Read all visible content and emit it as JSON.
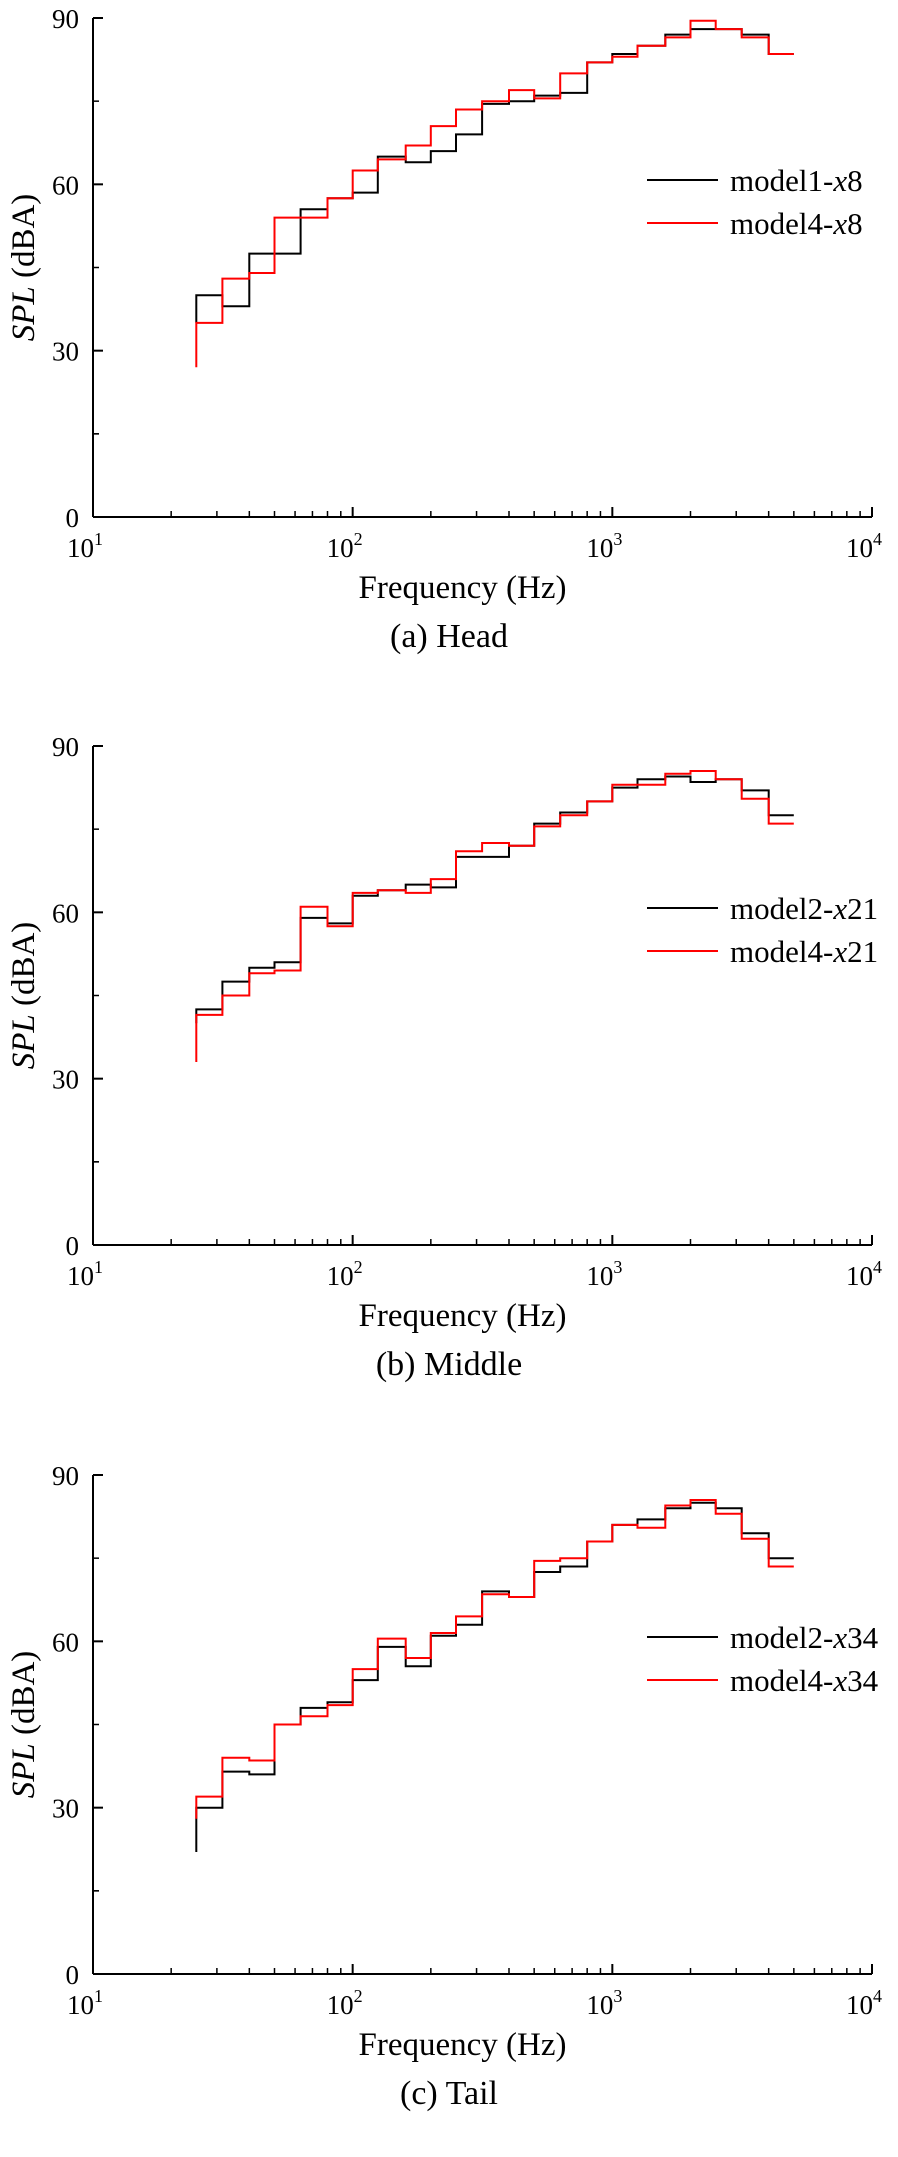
{
  "chart_data": [
    {
      "type": "line",
      "step": true,
      "xscale": "log",
      "xlim": [
        10,
        10000
      ],
      "ylim": [
        0,
        90
      ],
      "yticks": [
        0,
        30,
        60,
        90
      ],
      "xticks": [
        {
          "base": "10",
          "exp": "1"
        },
        {
          "base": "10",
          "exp": "2"
        },
        {
          "base": "10",
          "exp": "3"
        },
        {
          "base": "10",
          "exp": "4"
        }
      ],
      "xlabel": "Frequency (Hz)",
      "ylabel_italic": "SPL",
      "ylabel_rest": " (dBA)",
      "caption": "(a)  Head",
      "legend_position": "right",
      "x": [
        25,
        31.5,
        40,
        50,
        63,
        80,
        100,
        125,
        160,
        200,
        250,
        315,
        400,
        500,
        630,
        800,
        1000,
        1250,
        1600,
        2000,
        2500,
        3150,
        4000,
        5000
      ],
      "series": [
        {
          "name_prefix": "model1-",
          "name_italic": "x",
          "name_suffix": "8",
          "color": "#000000",
          "values": [
            40,
            38,
            47.5,
            47.5,
            55.5,
            57.5,
            58.5,
            65,
            64,
            66,
            69,
            74.5,
            75,
            76,
            76.5,
            82,
            83.5,
            85,
            87,
            88,
            88,
            87,
            83.5,
            83.5
          ]
        },
        {
          "name_prefix": "model4-",
          "name_italic": "x",
          "name_suffix": "8",
          "color": "#ff0000",
          "values": [
            35,
            43,
            44,
            54,
            54,
            57.5,
            62.5,
            64.5,
            67,
            70.5,
            73.5,
            75,
            77,
            75.5,
            80,
            82,
            83,
            85,
            86.5,
            89.5,
            88,
            86.5,
            83.5,
            83.5
          ]
        }
      ],
      "start_values": [
        35,
        27
      ]
    },
    {
      "type": "line",
      "step": true,
      "xscale": "log",
      "xlim": [
        10,
        10000
      ],
      "ylim": [
        0,
        90
      ],
      "yticks": [
        0,
        30,
        60,
        90
      ],
      "xticks": [
        {
          "base": "10",
          "exp": "1"
        },
        {
          "base": "10",
          "exp": "2"
        },
        {
          "base": "10",
          "exp": "3"
        },
        {
          "base": "10",
          "exp": "4"
        }
      ],
      "xlabel": "Frequency (Hz)",
      "ylabel_italic": "SPL",
      "ylabel_rest": " (dBA)",
      "caption": "(b)  Middle",
      "legend_position": "right",
      "x": [
        25,
        31.5,
        40,
        50,
        63,
        80,
        100,
        125,
        160,
        200,
        250,
        315,
        400,
        500,
        630,
        800,
        1000,
        1250,
        1600,
        2000,
        2500,
        3150,
        4000,
        5000
      ],
      "series": [
        {
          "name_prefix": "model2-",
          "name_italic": "x",
          "name_suffix": "21",
          "color": "#000000",
          "values": [
            42.5,
            47.5,
            50,
            51,
            59,
            58,
            63,
            64,
            65,
            64.5,
            70,
            70,
            72,
            76,
            78,
            80,
            82.5,
            84,
            84.5,
            83.5,
            84,
            82,
            77.5,
            77.5
          ]
        },
        {
          "name_prefix": "model4-",
          "name_italic": "x",
          "name_suffix": "21",
          "color": "#ff0000",
          "values": [
            41.5,
            45,
            49,
            49.5,
            61,
            57.5,
            63.5,
            64,
            63.5,
            66,
            71,
            72.5,
            72,
            75.5,
            77.5,
            80,
            83,
            83,
            85,
            85.5,
            84,
            80.5,
            76,
            76
          ]
        }
      ],
      "start_values": [
        40,
        33
      ]
    },
    {
      "type": "line",
      "step": true,
      "xscale": "log",
      "xlim": [
        10,
        10000
      ],
      "ylim": [
        0,
        90
      ],
      "yticks": [
        0,
        30,
        60,
        90
      ],
      "xticks": [
        {
          "base": "10",
          "exp": "1"
        },
        {
          "base": "10",
          "exp": "2"
        },
        {
          "base": "10",
          "exp": "3"
        },
        {
          "base": "10",
          "exp": "4"
        }
      ],
      "xlabel": "Frequency (Hz)",
      "ylabel_italic": "SPL",
      "ylabel_rest": " (dBA)",
      "caption": "(c)  Tail",
      "legend_position": "right",
      "x": [
        25,
        31.5,
        40,
        50,
        63,
        80,
        100,
        125,
        160,
        200,
        250,
        315,
        400,
        500,
        630,
        800,
        1000,
        1250,
        1600,
        2000,
        2500,
        3150,
        4000,
        5000
      ],
      "series": [
        {
          "name_prefix": "model2-",
          "name_italic": "x",
          "name_suffix": "34",
          "color": "#000000",
          "values": [
            30,
            36.5,
            36,
            45,
            48,
            49,
            53,
            59,
            55.5,
            61,
            63,
            69,
            68,
            72.5,
            73.5,
            78,
            81,
            82,
            84,
            85,
            84,
            79.5,
            75,
            75
          ]
        },
        {
          "name_prefix": "model4-",
          "name_italic": "x",
          "name_suffix": "34",
          "color": "#ff0000",
          "values": [
            32,
            39,
            38.5,
            45,
            46.5,
            48.5,
            55,
            60.5,
            57,
            61.5,
            64.5,
            68.5,
            68,
            74.5,
            75,
            78,
            81,
            80.5,
            84.5,
            85.5,
            83,
            78.5,
            73.5,
            73.5
          ]
        }
      ],
      "start_values": [
        22,
        28
      ]
    }
  ]
}
